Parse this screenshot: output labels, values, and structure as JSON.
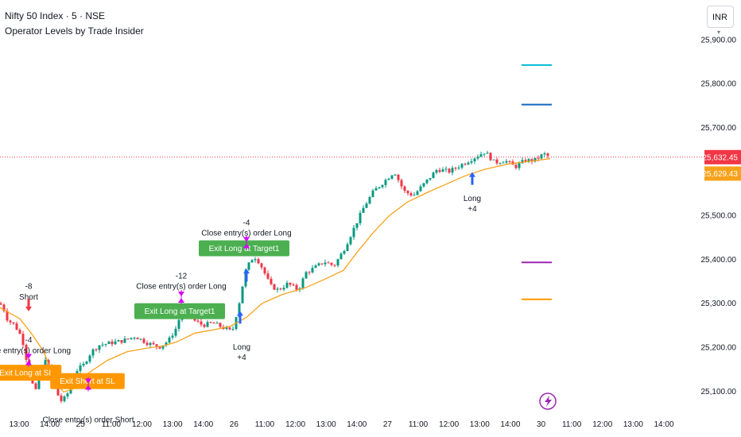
{
  "header": {
    "title": "Nifty 50 Index · 5 · NSE",
    "subtitle": "Operator Levels by Trade Insider",
    "currency": "INR"
  },
  "colors": {
    "up": "#089981",
    "down": "#f23645",
    "ma": "#f7a21b",
    "entry_marker": "#2962ff",
    "short_marker": "#f23645",
    "exit_marker": "#d500f9",
    "badge_target": "#4caf50",
    "badge_sl": "#ff9800",
    "last_price_bg": "#f23645",
    "ma_price_bg": "#f7a21b",
    "level_cyan": "#00bcd4",
    "level_blue": "#1565c0",
    "level_purple": "#9c27b0",
    "level_orange": "#ff9800"
  },
  "chart_data": {
    "type": "candlestick",
    "ylim": [
      25050,
      25990
    ],
    "y_ticks": [
      {
        "v": 25900,
        "label": "25,900.00"
      },
      {
        "v": 25800,
        "label": "25,800.00"
      },
      {
        "v": 25700,
        "label": "25,700.00"
      },
      {
        "v": 25500,
        "label": "25,500.00"
      },
      {
        "v": 25400,
        "label": "25,400.00"
      },
      {
        "v": 25300,
        "label": "25,300.00"
      },
      {
        "v": 25200,
        "label": "25,200.00"
      },
      {
        "v": 25100,
        "label": "25,100.00"
      }
    ],
    "x_ticks": [
      "13:00",
      "14:00",
      "25",
      "11:00",
      "12:00",
      "13:00",
      "14:00",
      "26",
      "11:00",
      "12:00",
      "13:00",
      "14:00",
      "27",
      "11:00",
      "12:00",
      "13:00",
      "14:00",
      "30",
      "11:00",
      "12:00",
      "13:00",
      "14:00"
    ],
    "last_price": {
      "value": 25632.45,
      "label": "25,632.45"
    },
    "ma_price": {
      "value": 25629.43,
      "label": "25,629.43"
    },
    "levels": [
      {
        "value": 25842,
        "color": "cyan"
      },
      {
        "value": 25752,
        "color": "blue"
      },
      {
        "value": 25393,
        "color": "purple"
      },
      {
        "value": 25309,
        "color": "orange"
      }
    ],
    "price_path": [
      [
        0,
        25300
      ],
      [
        5,
        25285
      ],
      [
        10,
        25260
      ],
      [
        16,
        25255
      ],
      [
        22,
        25240
      ],
      [
        28,
        25220
      ],
      [
        32,
        25180
      ],
      [
        36,
        25160
      ],
      [
        40,
        25120
      ],
      [
        45,
        25100
      ],
      [
        52,
        25150
      ],
      [
        58,
        25180
      ],
      [
        64,
        25130
      ],
      [
        70,
        25100
      ],
      [
        78,
        25075
      ],
      [
        85,
        25095
      ],
      [
        95,
        25145
      ],
      [
        105,
        25160
      ],
      [
        115,
        25190
      ],
      [
        125,
        25205
      ],
      [
        140,
        25210
      ],
      [
        155,
        25215
      ],
      [
        170,
        25225
      ],
      [
        185,
        25210
      ],
      [
        200,
        25200
      ],
      [
        212,
        25215
      ],
      [
        222,
        25245
      ],
      [
        228,
        25280
      ],
      [
        236,
        25285
      ],
      [
        245,
        25260
      ],
      [
        255,
        25250
      ],
      [
        268,
        25255
      ],
      [
        280,
        25245
      ],
      [
        292,
        25235
      ],
      [
        302,
        25310
      ],
      [
        308,
        25370
      ],
      [
        316,
        25400
      ],
      [
        322,
        25405
      ],
      [
        330,
        25380
      ],
      [
        340,
        25340
      ],
      [
        350,
        25330
      ],
      [
        362,
        25345
      ],
      [
        375,
        25330
      ],
      [
        385,
        25370
      ],
      [
        395,
        25380
      ],
      [
        408,
        25395
      ],
      [
        420,
        25385
      ],
      [
        432,
        25420
      ],
      [
        445,
        25470
      ],
      [
        458,
        25520
      ],
      [
        470,
        25555
      ],
      [
        482,
        25575
      ],
      [
        496,
        25600
      ],
      [
        508,
        25555
      ],
      [
        520,
        25545
      ],
      [
        535,
        25575
      ],
      [
        550,
        25605
      ],
      [
        565,
        25600
      ],
      [
        580,
        25615
      ],
      [
        595,
        25630
      ],
      [
        610,
        25645
      ],
      [
        622,
        25620
      ],
      [
        635,
        25625
      ],
      [
        648,
        25610
      ],
      [
        660,
        25625
      ],
      [
        672,
        25625
      ],
      [
        684,
        25640
      ],
      [
        692,
        25632
      ]
    ],
    "ma_path": [
      [
        0,
        25290
      ],
      [
        12,
        25278
      ],
      [
        25,
        25265
      ],
      [
        40,
        25230
      ],
      [
        55,
        25190
      ],
      [
        70,
        25120
      ],
      [
        80,
        25098
      ],
      [
        92,
        25105
      ],
      [
        110,
        25140
      ],
      [
        135,
        25170
      ],
      [
        160,
        25190
      ],
      [
        185,
        25198
      ],
      [
        205,
        25203
      ],
      [
        222,
        25212
      ],
      [
        245,
        25232
      ],
      [
        270,
        25240
      ],
      [
        290,
        25248
      ],
      [
        310,
        25268
      ],
      [
        330,
        25300
      ],
      [
        355,
        25320
      ],
      [
        385,
        25336
      ],
      [
        410,
        25356
      ],
      [
        432,
        25375
      ],
      [
        450,
        25418
      ],
      [
        470,
        25462
      ],
      [
        490,
        25500
      ],
      [
        512,
        25530
      ],
      [
        535,
        25550
      ],
      [
        560,
        25570
      ],
      [
        585,
        25590
      ],
      [
        610,
        25605
      ],
      [
        640,
        25617
      ],
      [
        670,
        25624
      ],
      [
        692,
        25629
      ]
    ],
    "annotations": [
      {
        "kind": "label",
        "x": 36,
        "y": 25340,
        "text": "-8"
      },
      {
        "kind": "label",
        "x": 36,
        "y": 25316,
        "text": "Short"
      },
      {
        "kind": "label",
        "x": 36,
        "y": 25218,
        "text": "-4"
      },
      {
        "kind": "label",
        "x": 36,
        "y": 25194,
        "text": "lose entry(s) order Long"
      },
      {
        "kind": "label",
        "x": 111,
        "y": 25036,
        "text": "Close entry(s) order Short"
      },
      {
        "kind": "label",
        "x": 228,
        "y": 25364,
        "text": "-12"
      },
      {
        "kind": "label",
        "x": 228,
        "y": 25340,
        "text": "Close entry(s) order Long"
      },
      {
        "kind": "label",
        "x": 310,
        "y": 25485,
        "text": "-4"
      },
      {
        "kind": "label",
        "x": 310,
        "y": 25461,
        "text": "Close entry(s) order Long"
      },
      {
        "kind": "label",
        "x": 304,
        "y": 25202,
        "text": "Long"
      },
      {
        "kind": "label",
        "x": 304,
        "y": 25178,
        "text": "+4"
      },
      {
        "kind": "label",
        "x": 594,
        "y": 25540,
        "text": "Long"
      },
      {
        "kind": "label",
        "x": 594,
        "y": 25516,
        "text": "+4"
      },
      {
        "kind": "badge",
        "x": 33,
        "y": 25142,
        "color": "sl",
        "text": "Exit Long at SL"
      },
      {
        "kind": "badge",
        "x": 110,
        "y": 25123,
        "color": "sl",
        "text": "Exit Short at SL"
      },
      {
        "kind": "badge",
        "x": 226,
        "y": 25282,
        "color": "target",
        "text": "Exit Long at Target1"
      },
      {
        "kind": "badge",
        "x": 307,
        "y": 25425,
        "color": "target",
        "text": "Exit Long at Target1"
      }
    ],
    "markers": [
      {
        "kind": "short",
        "x": 36,
        "y": 25296
      },
      {
        "kind": "exit",
        "x": 36,
        "y": 25172
      },
      {
        "kind": "exit",
        "x": 111,
        "y": 25116
      },
      {
        "kind": "exit",
        "x": 228,
        "y": 25314
      },
      {
        "kind": "exit",
        "x": 310,
        "y": 25438
      },
      {
        "kind": "long",
        "x": 302,
        "y": 25268
      },
      {
        "kind": "long",
        "x": 310,
        "y": 25364
      },
      {
        "kind": "long",
        "x": 594,
        "y": 25584
      }
    ]
  }
}
